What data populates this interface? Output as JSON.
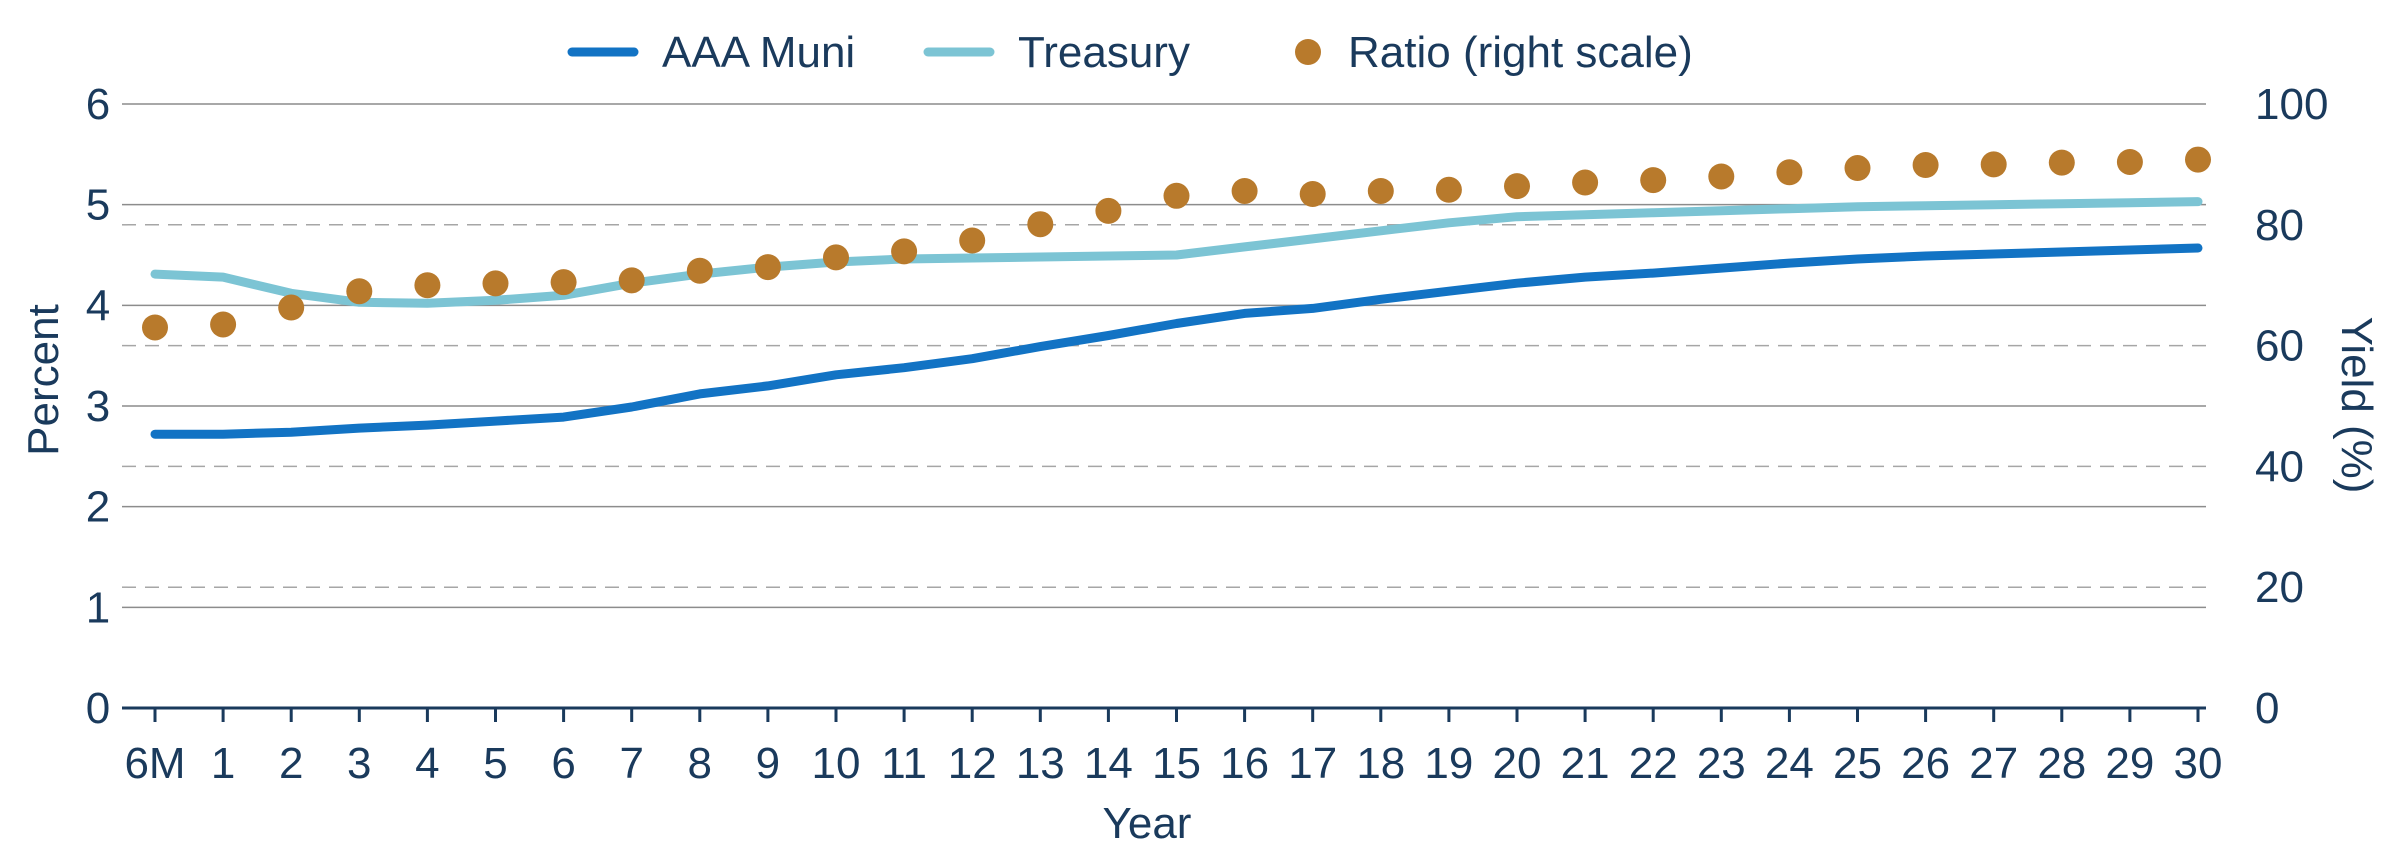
{
  "chart_data": {
    "type": "line",
    "title": "",
    "xlabel": "Year",
    "ylabel_left": "Percent",
    "ylabel_right": "Yield (%)",
    "ylim_left": [
      0,
      6
    ],
    "ylim_right": [
      0,
      100
    ],
    "yticks_left": [
      "0",
      "1",
      "2",
      "3",
      "4",
      "5",
      "6"
    ],
    "yticks_right": [
      "0",
      "20",
      "40",
      "60",
      "80",
      "100"
    ],
    "grid": true,
    "legend_position": "top",
    "categories": [
      "6M",
      "1",
      "2",
      "3",
      "4",
      "5",
      "6",
      "7",
      "8",
      "9",
      "10",
      "11",
      "12",
      "13",
      "14",
      "15",
      "16",
      "17",
      "18",
      "19",
      "20",
      "21",
      "22",
      "23",
      "24",
      "25",
      "26",
      "27",
      "28",
      "29",
      "30"
    ],
    "series": [
      {
        "name": "AAA Muni",
        "axis": "left",
        "kind": "line",
        "color": "#1273c4",
        "values": [
          2.72,
          2.72,
          2.74,
          2.78,
          2.81,
          2.85,
          2.89,
          2.99,
          3.12,
          3.2,
          3.31,
          3.38,
          3.47,
          3.59,
          3.7,
          3.82,
          3.92,
          3.97,
          4.06,
          4.14,
          4.22,
          4.28,
          4.32,
          4.37,
          4.42,
          4.46,
          4.49,
          4.51,
          4.53,
          4.55,
          4.57
        ]
      },
      {
        "name": "Treasury",
        "axis": "left",
        "kind": "line",
        "color": "#7cc4d4",
        "values": [
          4.31,
          4.28,
          4.12,
          4.03,
          4.02,
          4.05,
          4.1,
          4.22,
          4.31,
          4.38,
          4.43,
          4.46,
          4.47,
          4.48,
          4.49,
          4.5,
          4.58,
          4.66,
          4.74,
          4.82,
          4.88,
          4.9,
          4.92,
          4.94,
          4.96,
          4.98,
          4.99,
          5.0,
          5.01,
          5.02,
          5.03
        ]
      },
      {
        "name": "Ratio (right scale)",
        "axis": "right",
        "kind": "scatter",
        "color": "#b87a2c",
        "values": [
          63,
          63.5,
          66.3,
          69,
          70,
          70.3,
          70.5,
          70.8,
          72.4,
          73,
          74.6,
          75.6,
          77.4,
          80.1,
          82.3,
          84.8,
          85.6,
          85.1,
          85.6,
          85.8,
          86.4,
          87,
          87.4,
          88,
          88.7,
          89.4,
          89.9,
          90,
          90.3,
          90.4,
          90.8
        ]
      }
    ]
  }
}
